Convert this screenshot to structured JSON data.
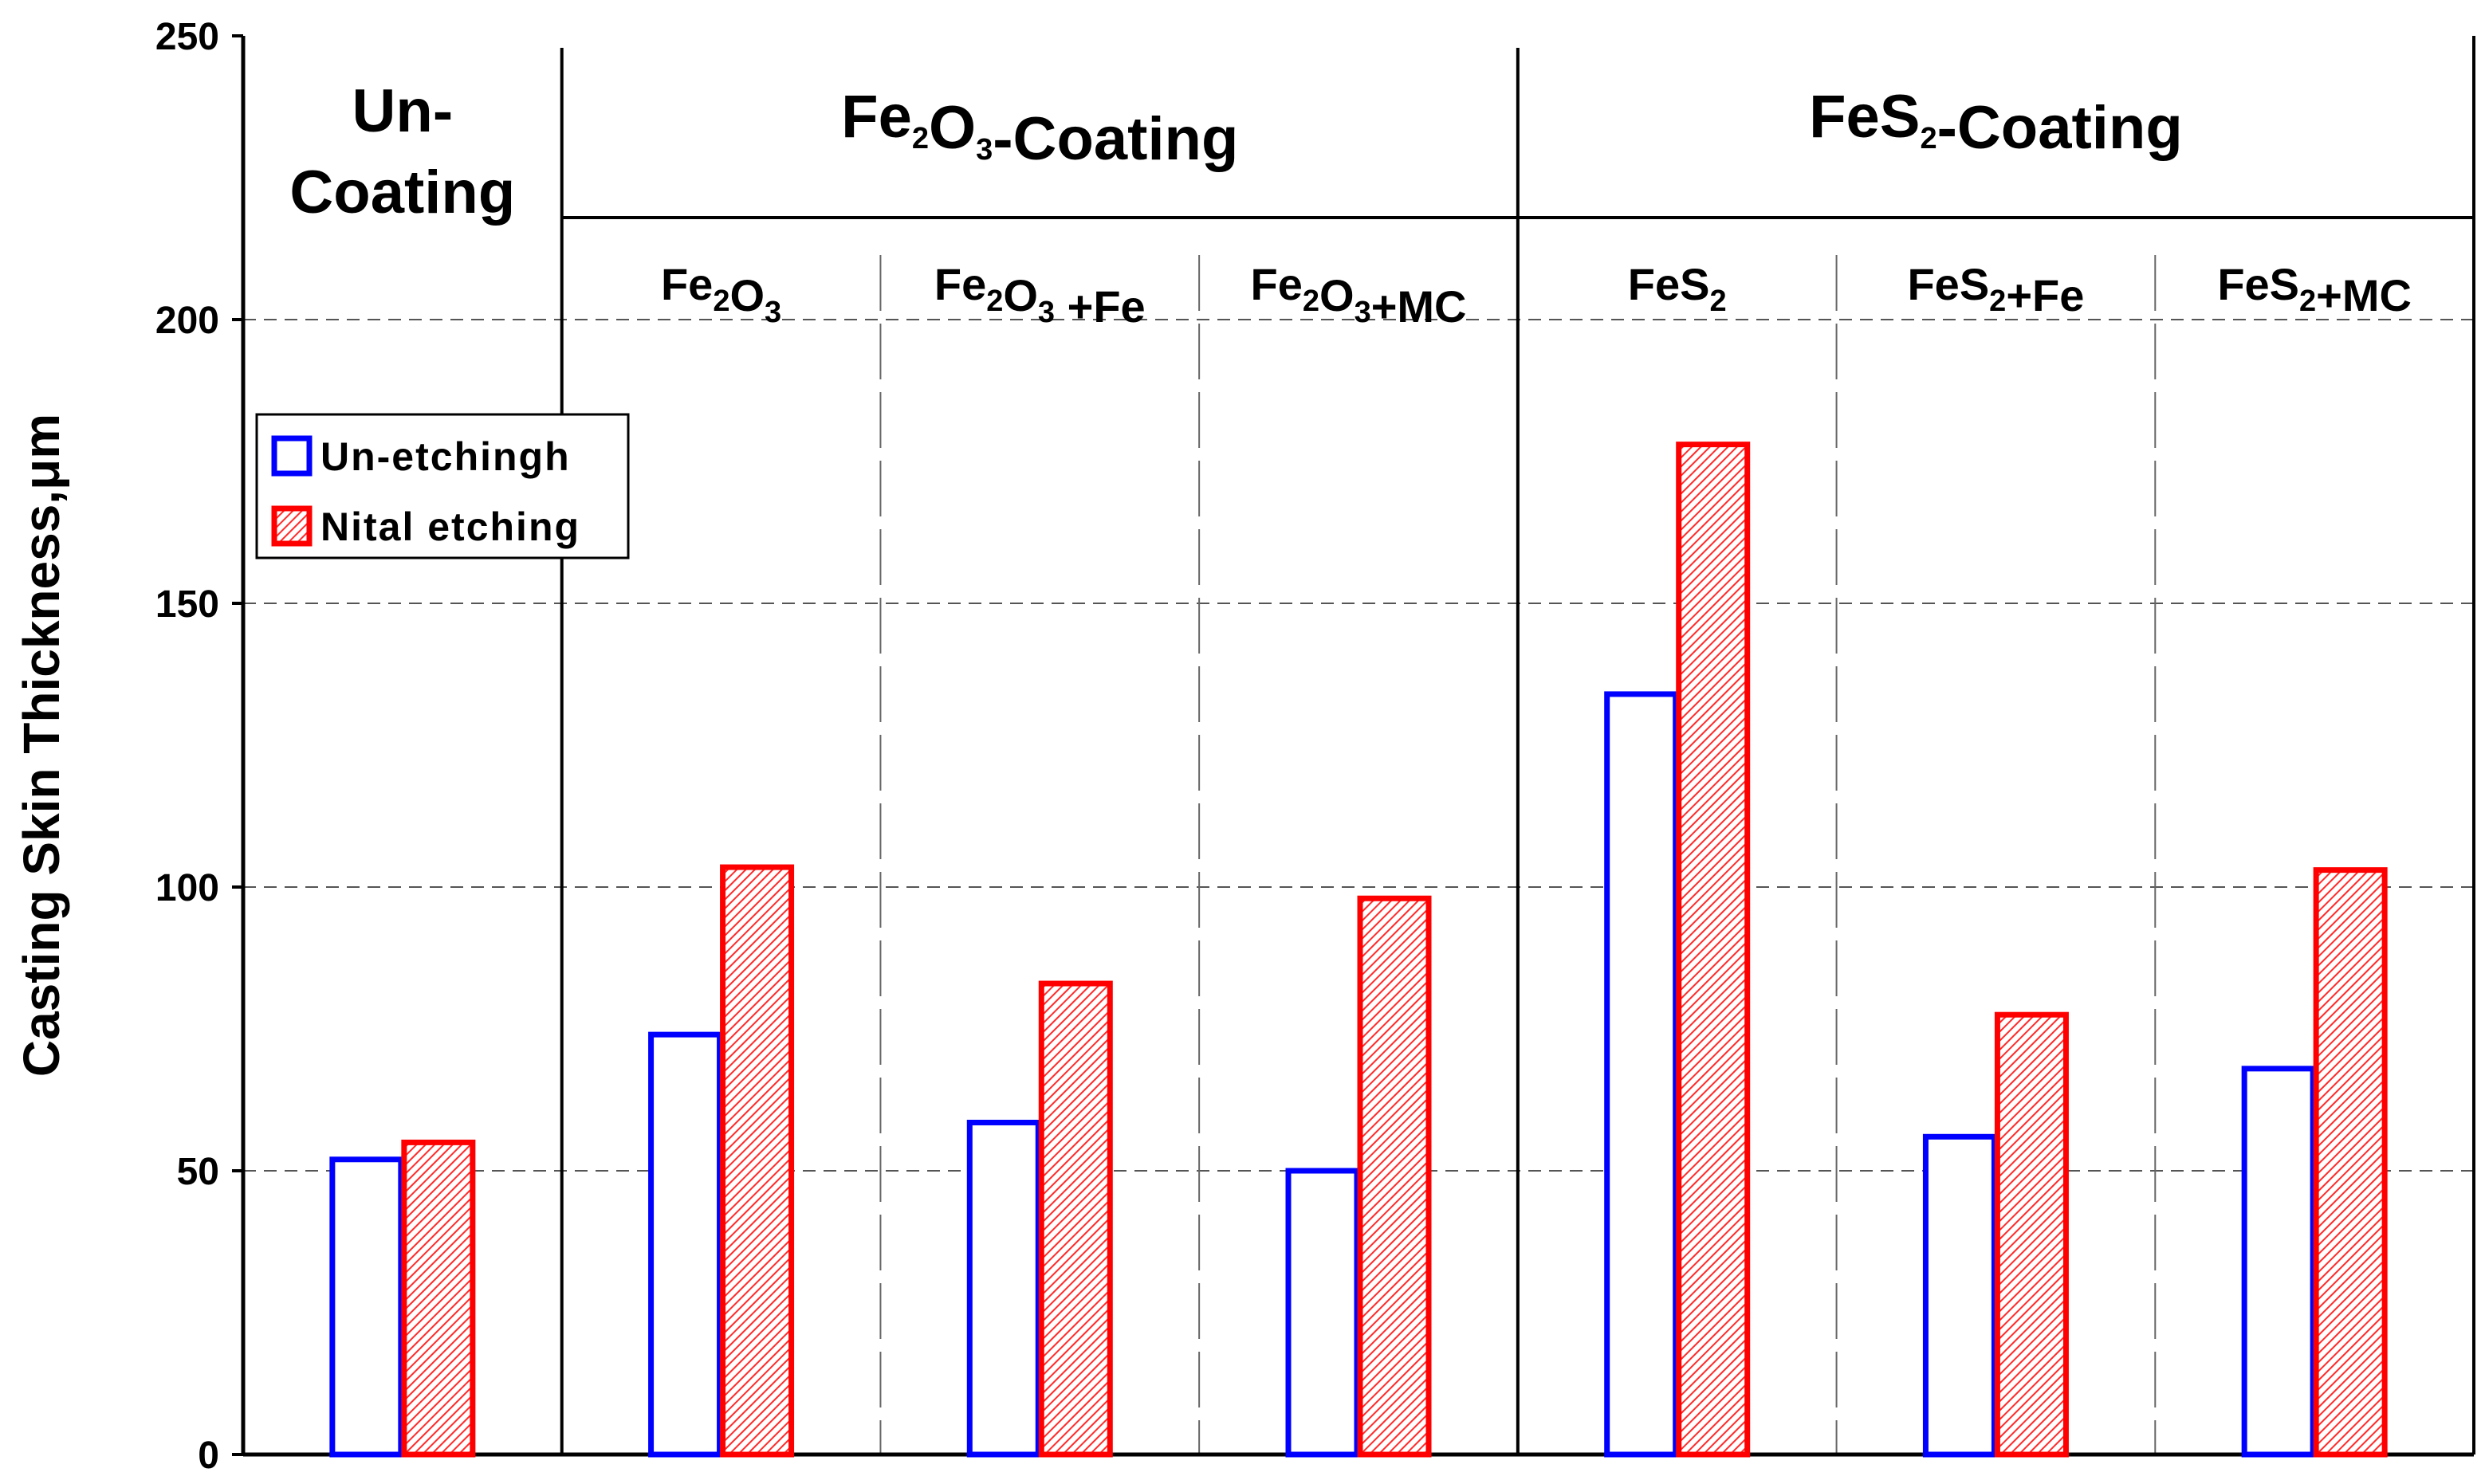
{
  "chart_data": {
    "type": "bar",
    "ylabel": "Casting Skin Thickness,μm",
    "ylim": [
      0,
      250
    ],
    "yticks": [
      0,
      50,
      100,
      150,
      200,
      250
    ],
    "grid": "dashed horizontal at 50, 150, 200",
    "groups": [
      {
        "title": "Un-Coating",
        "title_lines": [
          "Un-",
          "Coating"
        ]
      },
      {
        "title_parts": [
          {
            "t": "Fe"
          },
          {
            "t": "2",
            "sub": true
          },
          {
            "t": "O"
          },
          {
            "t": "3",
            "sub": true
          },
          {
            "t": "-Coating"
          }
        ]
      },
      {
        "title_parts": [
          {
            "t": "FeS"
          },
          {
            "t": "2",
            "sub": true
          },
          {
            "t": "-Coating"
          }
        ]
      }
    ],
    "categories": [
      {
        "label": "",
        "group": 0
      },
      {
        "label_parts": [
          {
            "t": "Fe"
          },
          {
            "t": "2",
            "sub": true
          },
          {
            "t": "O"
          },
          {
            "t": "3",
            "sub": true
          }
        ],
        "group": 1
      },
      {
        "label_parts": [
          {
            "t": "Fe"
          },
          {
            "t": "2",
            "sub": true
          },
          {
            "t": "O"
          },
          {
            "t": "3",
            "sub": true
          },
          {
            "t": " +Fe"
          }
        ],
        "group": 1
      },
      {
        "label_parts": [
          {
            "t": "Fe"
          },
          {
            "t": "2",
            "sub": true
          },
          {
            "t": "O"
          },
          {
            "t": "3",
            "sub": true
          },
          {
            "t": "+MC"
          }
        ],
        "group": 1
      },
      {
        "label_parts": [
          {
            "t": "FeS"
          },
          {
            "t": "2",
            "sub": true
          }
        ],
        "group": 2
      },
      {
        "label_parts": [
          {
            "t": "FeS"
          },
          {
            "t": "2",
            "sub": true
          },
          {
            "t": "+Fe"
          }
        ],
        "group": 2
      },
      {
        "label_parts": [
          {
            "t": "FeS"
          },
          {
            "t": "2",
            "sub": true
          },
          {
            "t": "+MC"
          }
        ],
        "group": 2
      }
    ],
    "series": [
      {
        "name": "Un-etchingh",
        "values": [
          52,
          74,
          58.5,
          50,
          134,
          56,
          68
        ],
        "color": "#0000ff",
        "fill": "none"
      },
      {
        "name": "Nital etching",
        "values": [
          55,
          103.5,
          83,
          98,
          178,
          77.5,
          103
        ],
        "color": "#ff0000",
        "fill": "hatched"
      }
    ],
    "legend_position": "upper-left"
  }
}
